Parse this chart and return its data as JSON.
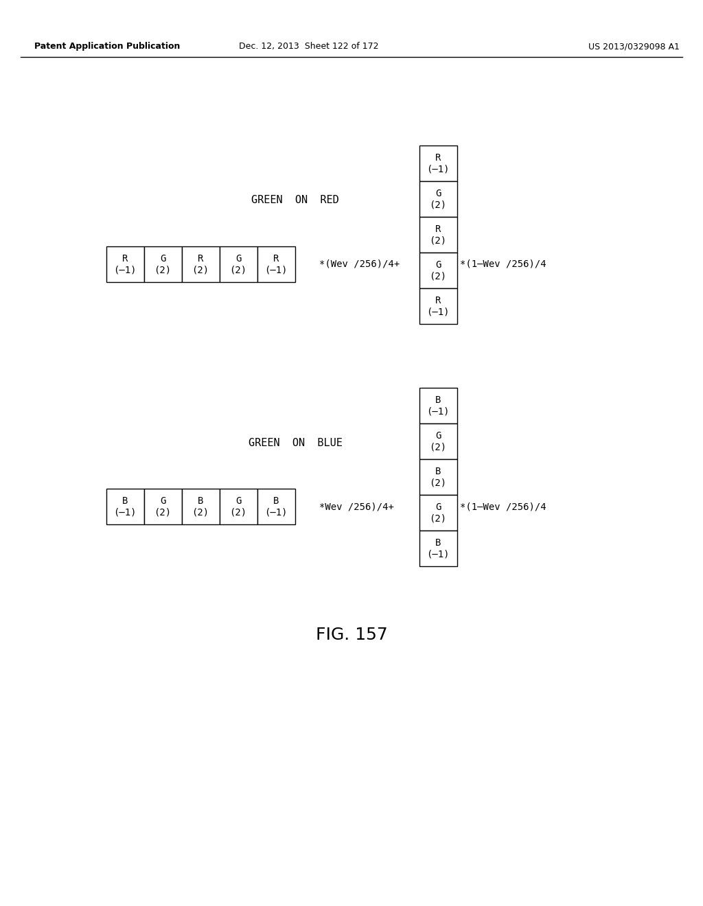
{
  "background_color": "#ffffff",
  "header_left": "Patent Application Publication",
  "header_center": "Dec. 12, 2013  Sheet 122 of 172",
  "header_right": "US 2013/0329098 A1",
  "header_fontsize": 9,
  "fig_label": "FIG. 157",
  "fig_label_fontsize": 18,
  "section1_title": "GREEN  ON  RED",
  "section2_title": "GREEN  ON  BLUE",
  "horiz1_cells": [
    {
      "label": "R\n(–1)"
    },
    {
      "label": "G\n(2)"
    },
    {
      "label": "R\n(2)"
    },
    {
      "label": "G\n(2)"
    },
    {
      "label": "R\n(–1)"
    }
  ],
  "horiz1_text_after": "*(Wev /256)/4+",
  "vert1_cells": [
    {
      "label": "R\n(–1)"
    },
    {
      "label": "G\n(2)"
    },
    {
      "label": "R\n(2)"
    },
    {
      "label": "G\n(2)"
    },
    {
      "label": "R\n(–1)"
    }
  ],
  "vert1_text_after": "*(1–Wev /256)/4",
  "horiz2_cells": [
    {
      "label": "B\n(–1)"
    },
    {
      "label": "G\n(2)"
    },
    {
      "label": "B\n(2)"
    },
    {
      "label": "G\n(2)"
    },
    {
      "label": "B\n(–1)"
    }
  ],
  "horiz2_text_after": "*Wev /256)/4+",
  "vert2_cells": [
    {
      "label": "B\n(–1)"
    },
    {
      "label": "G\n(2)"
    },
    {
      "label": "B\n(2)"
    },
    {
      "label": "G\n(2)"
    },
    {
      "label": "B\n(–1)"
    }
  ],
  "vert2_text_after": "*(1–Wev /256)/4",
  "font_family": "monospace",
  "cell_fontsize": 10,
  "title_fontsize": 11,
  "annot_fontsize": 10
}
